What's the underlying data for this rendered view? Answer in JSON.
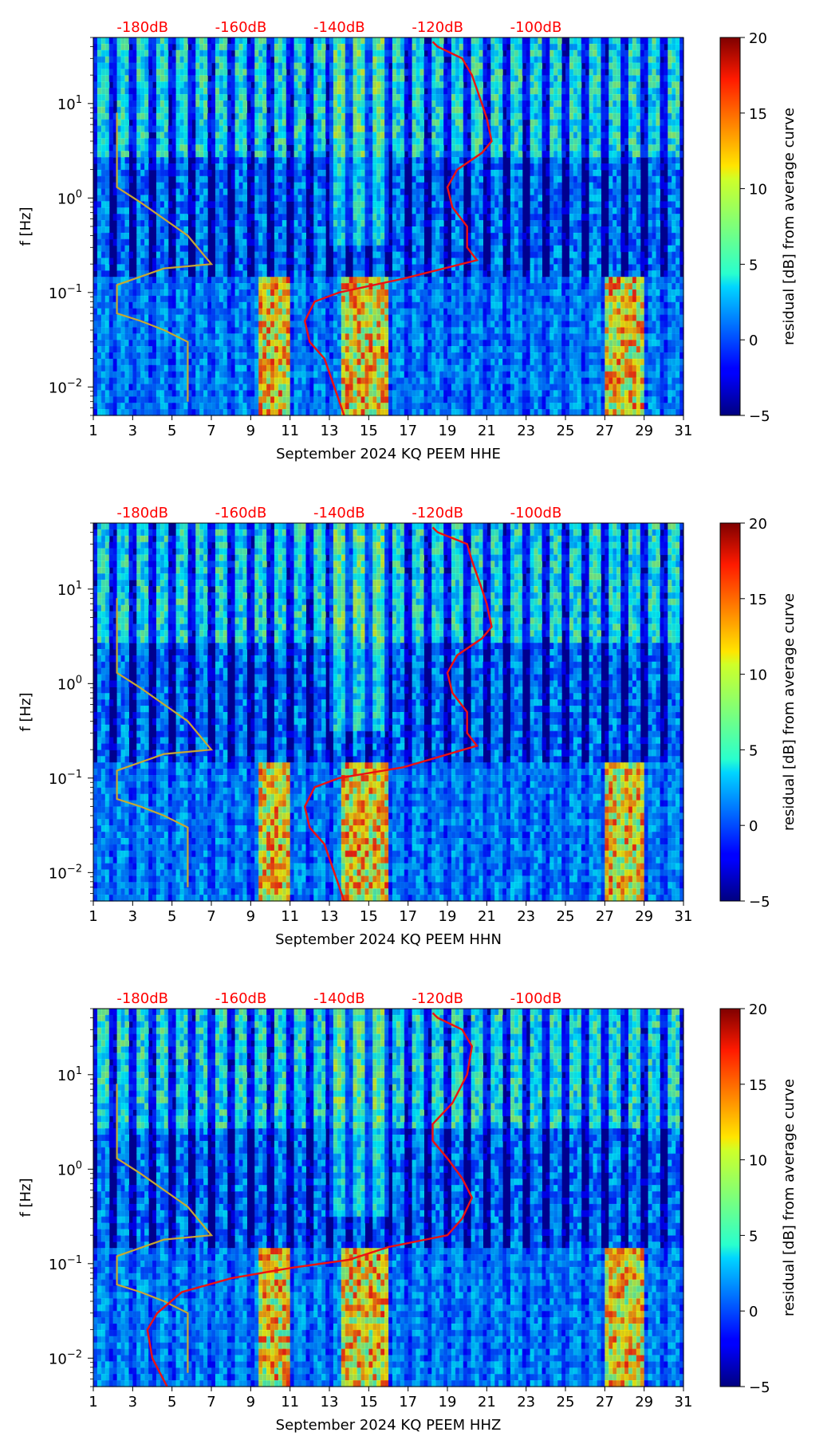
{
  "figure": {
    "ylabel": "f [Hz]",
    "colorbar_label": "residual [dB] from average curve",
    "colorbar_ticks": [
      "20",
      "15",
      "10",
      "5",
      "0",
      "−5"
    ],
    "x_ticks": [
      "1",
      "3",
      "5",
      "7",
      "9",
      "11",
      "13",
      "15",
      "17",
      "19",
      "21",
      "23",
      "25",
      "27",
      "29",
      "31"
    ],
    "y_ticks": [
      {
        "base": "10",
        "exp": "1"
      },
      {
        "base": "10",
        "exp": "0"
      },
      {
        "base": "10",
        "exp": "−1"
      },
      {
        "base": "10",
        "exp": "−2"
      }
    ],
    "db_labels": [
      "-180dB",
      "-160dB",
      "-140dB",
      "-120dB",
      "-100dB"
    ],
    "colors": {
      "red_curve": "#ee1111",
      "yellow_curve": "#c8a832",
      "db_label": "#ff0000"
    }
  },
  "chart_data": [
    {
      "type": "heatmap",
      "title": "",
      "xlabel": "September 2024 KQ PEEM  HHE",
      "ylabel": "f [Hz]",
      "xlim": [
        1,
        31
      ],
      "ylim": [
        0.005,
        50
      ],
      "y_scale": "log",
      "color_range": [
        -5,
        20
      ],
      "colorbar_label": "residual [dB] from average curve",
      "top_axis_db": [
        -180,
        -160,
        -140,
        -120,
        -100
      ],
      "red_curve": [
        [
          -121,
          45
        ],
        [
          -120,
          40
        ],
        [
          -115,
          30
        ],
        [
          -113,
          20
        ],
        [
          -111,
          10
        ],
        [
          -110,
          7
        ],
        [
          -109,
          4
        ],
        [
          -111,
          3
        ],
        [
          -116,
          2
        ],
        [
          -118,
          1.3
        ],
        [
          -117,
          0.8
        ],
        [
          -114,
          0.5
        ],
        [
          -114,
          0.3
        ],
        [
          -112,
          0.22
        ],
        [
          -127,
          0.14
        ],
        [
          -140,
          0.1
        ],
        [
          -145,
          0.08
        ],
        [
          -147,
          0.05
        ],
        [
          -146,
          0.03
        ],
        [
          -143,
          0.02
        ],
        [
          -141,
          0.01
        ],
        [
          -139,
          0.005
        ]
      ],
      "yellow_curve": [
        [
          -4,
          8
        ],
        [
          -4,
          3
        ],
        [
          -4,
          1.3
        ],
        [
          -3,
          0.9
        ],
        [
          -2,
          0.6
        ],
        [
          -1,
          0.4
        ],
        [
          0,
          0.2
        ],
        [
          -2,
          0.18
        ],
        [
          -4,
          0.12
        ],
        [
          -4,
          0.09
        ],
        [
          -4,
          0.06
        ],
        [
          -3,
          0.05
        ],
        [
          -2,
          0.04
        ],
        [
          -1,
          0.03
        ],
        [
          -1,
          0.02
        ],
        [
          -1,
          0.01
        ],
        [
          -1,
          0.007
        ]
      ]
    },
    {
      "type": "heatmap",
      "title": "",
      "xlabel": "September 2024 KQ PEEM  HHN",
      "ylabel": "f [Hz]",
      "xlim": [
        1,
        31
      ],
      "ylim": [
        0.005,
        50
      ],
      "y_scale": "log",
      "color_range": [
        -5,
        20
      ],
      "colorbar_label": "residual [dB] from average curve",
      "top_axis_db": [
        -180,
        -160,
        -140,
        -120,
        -100
      ],
      "red_curve": [
        [
          -121,
          45
        ],
        [
          -120,
          40
        ],
        [
          -114,
          30
        ],
        [
          -113,
          20
        ],
        [
          -111,
          10
        ],
        [
          -110,
          7
        ],
        [
          -109,
          4
        ],
        [
          -111,
          3
        ],
        [
          -116,
          2
        ],
        [
          -118,
          1.3
        ],
        [
          -117,
          0.8
        ],
        [
          -114,
          0.5
        ],
        [
          -114,
          0.3
        ],
        [
          -112,
          0.22
        ],
        [
          -127,
          0.13
        ],
        [
          -140,
          0.1
        ],
        [
          -145,
          0.08
        ],
        [
          -147,
          0.05
        ],
        [
          -146,
          0.03
        ],
        [
          -143,
          0.02
        ],
        [
          -141,
          0.01
        ],
        [
          -139,
          0.005
        ]
      ],
      "yellow_curve": [
        [
          -4,
          8
        ],
        [
          -4,
          3
        ],
        [
          -4,
          1.3
        ],
        [
          -3,
          0.9
        ],
        [
          -2,
          0.6
        ],
        [
          -1,
          0.4
        ],
        [
          0,
          0.2
        ],
        [
          -2,
          0.18
        ],
        [
          -4,
          0.12
        ],
        [
          -4,
          0.09
        ],
        [
          -4,
          0.06
        ],
        [
          -3,
          0.05
        ],
        [
          -2,
          0.04
        ],
        [
          -1,
          0.03
        ],
        [
          -1,
          0.02
        ],
        [
          -1,
          0.01
        ],
        [
          -1,
          0.007
        ]
      ]
    },
    {
      "type": "heatmap",
      "title": "",
      "xlabel": "September 2024 KQ PEEM  HHZ",
      "ylabel": "f [Hz]",
      "xlim": [
        1,
        31
      ],
      "ylim": [
        0.005,
        50
      ],
      "y_scale": "log",
      "color_range": [
        -5,
        20
      ],
      "colorbar_label": "residual [dB] from average curve",
      "top_axis_db": [
        -180,
        -160,
        -140,
        -120,
        -100
      ],
      "red_curve": [
        [
          -121,
          45
        ],
        [
          -120,
          40
        ],
        [
          -115,
          30
        ],
        [
          -113,
          20
        ],
        [
          -114,
          10
        ],
        [
          -117,
          5
        ],
        [
          -121,
          3
        ],
        [
          -121,
          2
        ],
        [
          -118,
          1.3
        ],
        [
          -115,
          0.8
        ],
        [
          -113,
          0.5
        ],
        [
          -115,
          0.3
        ],
        [
          -118,
          0.2
        ],
        [
          -130,
          0.15
        ],
        [
          -138,
          0.11
        ],
        [
          -150,
          0.09
        ],
        [
          -162,
          0.07
        ],
        [
          -172,
          0.05
        ],
        [
          -177,
          0.03
        ],
        [
          -179,
          0.02
        ],
        [
          -178,
          0.01
        ],
        [
          -175,
          0.005
        ]
      ],
      "yellow_curve": [
        [
          -4,
          8
        ],
        [
          -4,
          3
        ],
        [
          -4,
          1.3
        ],
        [
          -3,
          0.9
        ],
        [
          -2,
          0.6
        ],
        [
          -1,
          0.4
        ],
        [
          0,
          0.2
        ],
        [
          -2,
          0.18
        ],
        [
          -4,
          0.12
        ],
        [
          -4,
          0.09
        ],
        [
          -4,
          0.06
        ],
        [
          -3,
          0.05
        ],
        [
          -2,
          0.04
        ],
        [
          -1,
          0.03
        ],
        [
          -1,
          0.02
        ],
        [
          -1,
          0.01
        ],
        [
          -1,
          0.007
        ]
      ]
    }
  ]
}
